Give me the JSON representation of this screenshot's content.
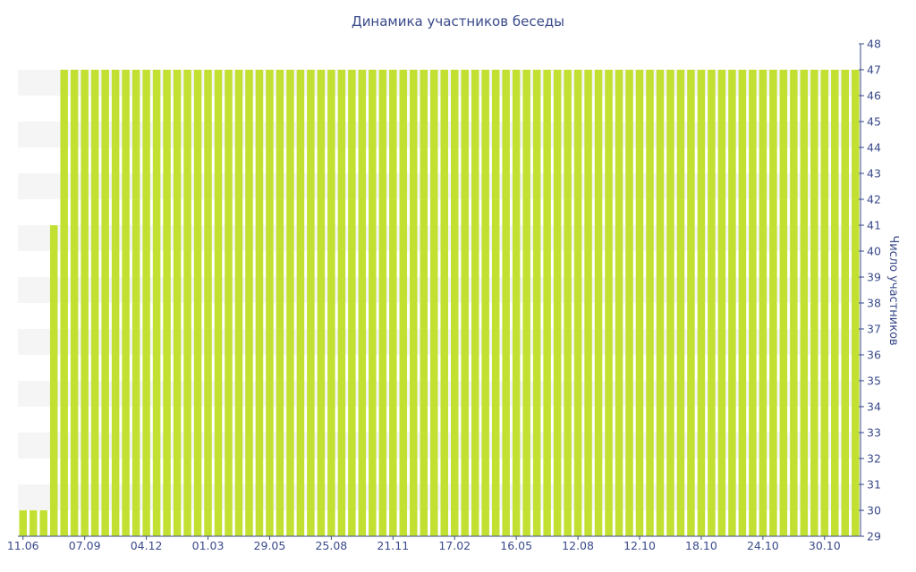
{
  "chart_data": {
    "type": "bar",
    "title": "Динамика участников беседы",
    "ylabel": "Число участников",
    "xlabel": "",
    "ylim": [
      29,
      48
    ],
    "y_axis_side": "right",
    "yticks": [
      29,
      30,
      31,
      32,
      33,
      34,
      35,
      36,
      37,
      38,
      39,
      40,
      41,
      42,
      43,
      44,
      45,
      46,
      47,
      48
    ],
    "grid": "alternating horizontal bands",
    "legend": "none",
    "x_tick_labels": [
      "11.06",
      "07.09",
      "04.12",
      "01.03",
      "29.05",
      "25.08",
      "21.11",
      "17.02",
      "16.05",
      "12.08",
      "12.10",
      "18.10",
      "24.10",
      "30.10"
    ],
    "x_tick_positions": [
      0,
      6,
      12,
      18,
      24,
      30,
      36,
      42,
      48,
      54,
      60,
      66,
      72,
      78
    ],
    "values": [
      30,
      30,
      30,
      41,
      47,
      47,
      47,
      47,
      47,
      47,
      47,
      47,
      47,
      47,
      47,
      47,
      47,
      47,
      47,
      47,
      47,
      47,
      47,
      47,
      47,
      47,
      47,
      47,
      47,
      47,
      47,
      47,
      47,
      47,
      47,
      47,
      47,
      47,
      47,
      47,
      47,
      47,
      47,
      47,
      47,
      47,
      47,
      47,
      47,
      47,
      47,
      47,
      47,
      47,
      47,
      47,
      47,
      47,
      47,
      47,
      47,
      47,
      47,
      47,
      47,
      47,
      47,
      47,
      47,
      47,
      47,
      47,
      47,
      47,
      47,
      47,
      47,
      47,
      47,
      47,
      47,
      47
    ],
    "colors": {
      "bar": "#c2e031",
      "axis": "#3a4a8a",
      "band": "#f5f5f5",
      "text": "#3a4a8a"
    }
  }
}
